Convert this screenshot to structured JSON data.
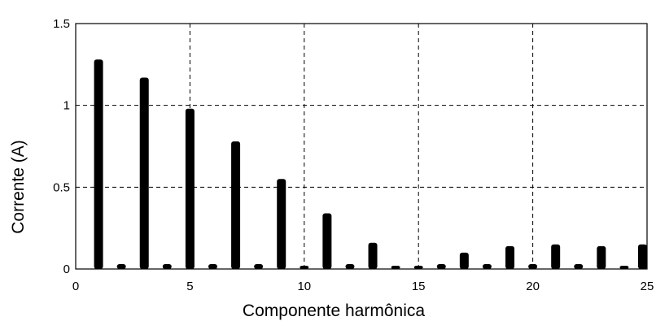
{
  "chart_data": {
    "type": "bar",
    "xlabel": "Componente harmônica",
    "ylabel": "Corrente (A)",
    "xlim": [
      0,
      25
    ],
    "ylim": [
      0,
      1.5
    ],
    "grid": true,
    "x_ticks": [
      0,
      5,
      10,
      15,
      20,
      25
    ],
    "y_ticks": [
      0,
      0.5,
      1,
      1.5
    ],
    "x_tick_labels": [
      "0",
      "5",
      "10",
      "15",
      "20",
      "25"
    ],
    "y_tick_labels": [
      "0",
      "0.5",
      "1",
      "1.5"
    ],
    "bar_color": "#000000",
    "x": [
      1,
      2,
      3,
      4,
      5,
      6,
      7,
      8,
      9,
      10,
      11,
      12,
      13,
      14,
      15,
      16,
      17,
      18,
      19,
      20,
      21,
      22,
      23,
      24,
      25
    ],
    "values": [
      1.28,
      0.03,
      1.17,
      0.03,
      0.98,
      0.03,
      0.78,
      0.03,
      0.55,
      0.02,
      0.34,
      0.03,
      0.16,
      0.02,
      0.02,
      0.03,
      0.1,
      0.03,
      0.14,
      0.03,
      0.15,
      0.03,
      0.14,
      0.02,
      0.15
    ]
  }
}
